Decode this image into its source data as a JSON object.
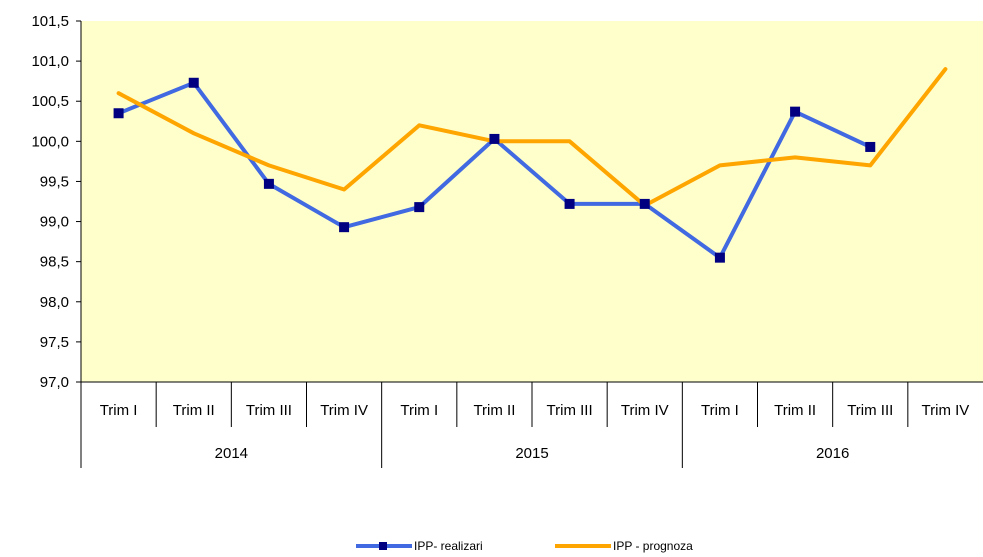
{
  "chart_data": {
    "type": "line",
    "categories": [
      "Trim I",
      "Trim II",
      "Trim III",
      "Trim IV",
      "Trim I",
      "Trim II",
      "Trim III",
      "Trim IV",
      "Trim I",
      "Trim II",
      "Trim III",
      "Trim IV"
    ],
    "groups": [
      {
        "label": "2014",
        "count": 4
      },
      {
        "label": "2015",
        "count": 4
      },
      {
        "label": "2016",
        "count": 4
      }
    ],
    "series": [
      {
        "name": "IPP- realizari",
        "color": "#4169e1",
        "marker_color": "#000080",
        "values": [
          100.35,
          100.73,
          99.47,
          98.93,
          99.18,
          100.03,
          99.22,
          99.22,
          98.55,
          100.37,
          99.93,
          null
        ]
      },
      {
        "name": "IPP - prognoza",
        "color": "#ffa500",
        "values": [
          100.6,
          100.1,
          99.7,
          99.4,
          100.2,
          100.0,
          100.0,
          99.2,
          99.7,
          99.8,
          99.7,
          100.9
        ]
      }
    ],
    "ylim": [
      97.0,
      101.5
    ],
    "yticks": [
      "97,0",
      "97,5",
      "98,0",
      "98,5",
      "99,0",
      "99,5",
      "100,0",
      "100,5",
      "101,0",
      "101,5"
    ],
    "plot_background": "#ffffcc",
    "grid": false,
    "legend": "bottom-center"
  }
}
